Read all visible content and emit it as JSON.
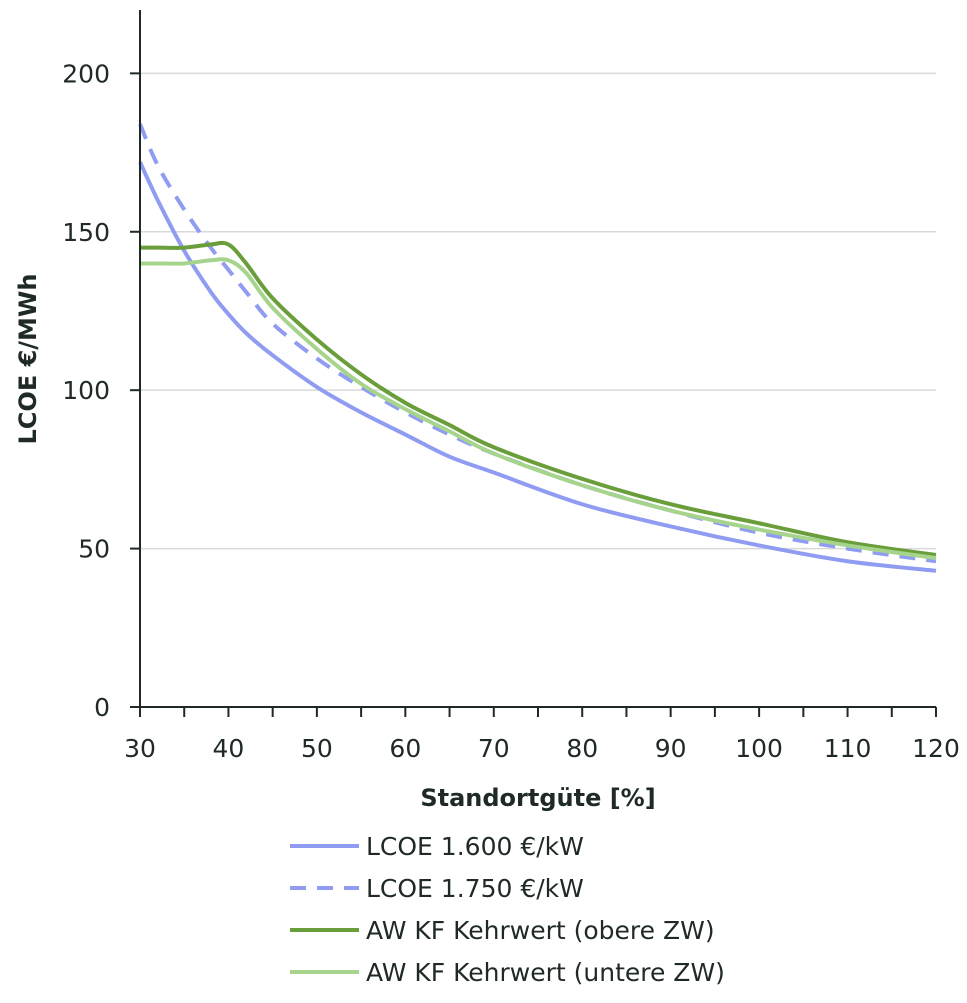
{
  "chart_data": {
    "type": "line",
    "title": "",
    "xlabel": "Standortgüte [%]",
    "ylabel": "LCOE €/MWh",
    "xlim": [
      30,
      120
    ],
    "ylim": [
      0,
      220
    ],
    "x_ticks": [
      30,
      40,
      50,
      60,
      70,
      80,
      90,
      100,
      110,
      120
    ],
    "y_ticks": [
      0,
      50,
      100,
      150,
      200
    ],
    "grid": "horizontal",
    "legend_position": "bottom",
    "x": [
      30,
      32,
      35,
      38,
      40,
      42,
      45,
      50,
      55,
      60,
      65,
      70,
      80,
      90,
      100,
      110,
      120
    ],
    "series": [
      {
        "name": "LCOE 1.600 €/kW",
        "color": "#8f9cf2",
        "dash": "solid",
        "values": [
          172,
          160,
          144,
          131,
          124,
          118,
          111,
          101,
          93,
          86,
          79,
          74,
          64,
          57,
          51,
          46,
          43
        ]
      },
      {
        "name": "LCOE 1.750 €/kW",
        "color": "#8f9cf2",
        "dash": "dashed",
        "values": [
          184,
          171,
          157,
          145,
          138,
          131,
          121,
          110,
          101,
          93,
          86,
          80,
          70,
          62,
          55,
          50,
          46
        ]
      },
      {
        "name": "AW KF Kehrwert (obere ZW)",
        "color": "#6a9e3a",
        "dash": "solid",
        "values": [
          145,
          145,
          145,
          146,
          146,
          140,
          129,
          116,
          105,
          96,
          89,
          82,
          72,
          64,
          58,
          52,
          48
        ]
      },
      {
        "name": "AW KF Kehrwert (untere ZW)",
        "color": "#a6d48c",
        "dash": "solid",
        "values": [
          140,
          140,
          140,
          141,
          141,
          137,
          126,
          113,
          102,
          94,
          87,
          80,
          70,
          62,
          56,
          51,
          47
        ]
      }
    ]
  }
}
